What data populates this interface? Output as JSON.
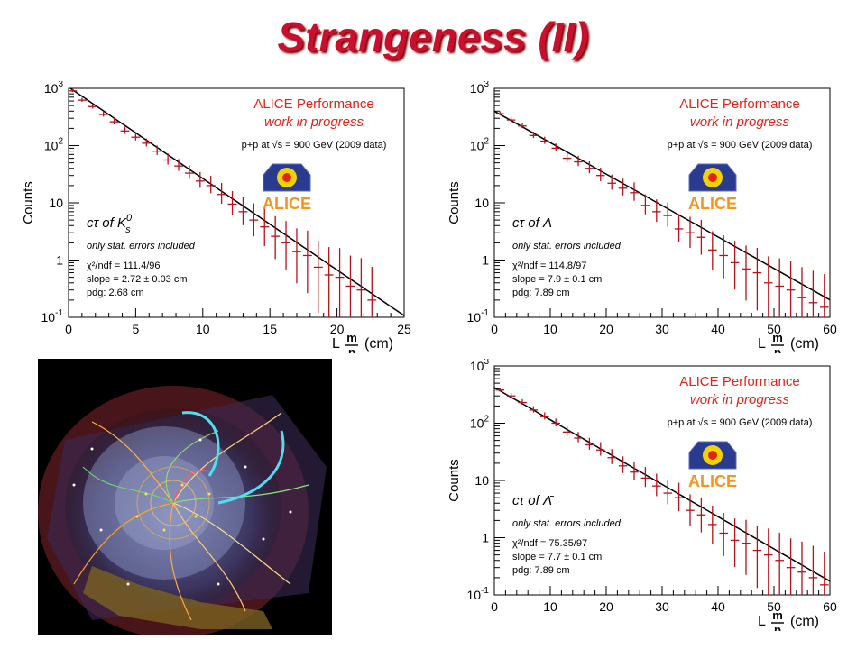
{
  "slide": {
    "title": "Strangeness (II)"
  },
  "colors": {
    "title": "#c8102e",
    "data": "#b5121b",
    "fit": "#000000",
    "alice": "#e2231a"
  },
  "chart_data": [
    {
      "type": "scatter",
      "panel": "top-left",
      "ylabel": "Counts",
      "xlabel": "L",
      "xlabel_frac_num": "m",
      "xlabel_frac_den": "p",
      "xlabel_unit": "(cm)",
      "xlim": [
        0,
        25
      ],
      "ylim": [
        0.1,
        1000
      ],
      "yscale": "log",
      "x_ticks": [
        "0",
        "5",
        "10",
        "15",
        "20",
        "25"
      ],
      "y_ticks": [
        {
          "base": "10",
          "exp": "-1",
          "v": 0.1
        },
        {
          "base": "1",
          "exp": "",
          "v": 1
        },
        {
          "base": "10",
          "exp": "",
          "v": 10
        },
        {
          "base": "10",
          "exp": "2",
          "v": 100
        },
        {
          "base": "10",
          "exp": "3",
          "v": 1000
        }
      ],
      "alice_title": "ALICE Performance",
      "alice_sub": "work in progress",
      "condition": "p+p at √s = 900 GeV (2009 data)",
      "logo_text": "ALICE",
      "particle_label": "cτ  of  K",
      "particle_sup": "0",
      "particle_sub": "s",
      "errors_note": "only stat. errors included",
      "chi2": "χ²/ndf = 111.4/96",
      "slope": "slope = 2.72 ± 0.03 cm",
      "pdg": "pdg: 2.68 cm",
      "fit": {
        "x0": 0,
        "y0": 1050,
        "tau": 2.72
      },
      "x": [
        0.3,
        1.0,
        1.8,
        2.6,
        3.4,
        4.2,
        5.0,
        5.8,
        6.6,
        7.4,
        8.2,
        9.0,
        9.8,
        10.6,
        11.4,
        12.2,
        13.0,
        13.8,
        14.6,
        15.4,
        16.2,
        17.0,
        17.8,
        18.6,
        19.4,
        20.2,
        21.0,
        21.8,
        22.6
      ],
      "y": [
        900,
        620,
        480,
        350,
        260,
        180,
        140,
        110,
        80,
        56,
        44,
        33,
        24,
        20,
        14,
        9.5,
        7,
        5,
        3.8,
        2.6,
        2,
        1.4,
        1.2,
        0.75,
        0.55,
        0.5,
        0.35,
        0.3,
        0.2
      ],
      "err": [
        0.04,
        0.05,
        0.06,
        0.07,
        0.08,
        0.09,
        0.1,
        0.1,
        0.12,
        0.14,
        0.15,
        0.17,
        0.2,
        0.22,
        0.26,
        0.3,
        0.35,
        0.4,
        0.45,
        0.5,
        0.55,
        0.6,
        0.65,
        0.7,
        0.75,
        0.8,
        0.85,
        0.9,
        0.95
      ]
    },
    {
      "type": "scatter",
      "panel": "top-right",
      "ylabel": "Counts",
      "xlabel": "L",
      "xlabel_frac_num": "m",
      "xlabel_frac_den": "p",
      "xlabel_unit": "(cm)",
      "xlim": [
        0,
        60
      ],
      "ylim": [
        0.1,
        1000
      ],
      "yscale": "log",
      "x_ticks": [
        "0",
        "10",
        "20",
        "30",
        "40",
        "50",
        "60"
      ],
      "y_ticks": [
        {
          "base": "10",
          "exp": "-1",
          "v": 0.1
        },
        {
          "base": "1",
          "exp": "",
          "v": 1
        },
        {
          "base": "10",
          "exp": "",
          "v": 10
        },
        {
          "base": "10",
          "exp": "2",
          "v": 100
        },
        {
          "base": "10",
          "exp": "3",
          "v": 1000
        }
      ],
      "alice_title": "ALICE Performance",
      "alice_sub": "work in progress",
      "condition": "p+p at √s = 900 GeV (2009 data)",
      "logo_text": "ALICE",
      "particle_label": "cτ  of  Λ",
      "particle_sup": "",
      "particle_sub": "",
      "errors_note": "only stat. errors included",
      "chi2": "χ²/ndf = 114.8/97",
      "slope": "slope = 7.9 ± 0.1 cm",
      "pdg": "pdg: 7.89 cm",
      "fit": {
        "x0": 0,
        "y0": 400,
        "tau": 7.9
      },
      "x": [
        1,
        3,
        5,
        7,
        9,
        11,
        13,
        15,
        17,
        19,
        21,
        23,
        25,
        27,
        29,
        31,
        33,
        35,
        37,
        39,
        41,
        43,
        45,
        47,
        49,
        51,
        53,
        55,
        57,
        59
      ],
      "y": [
        360,
        280,
        220,
        150,
        120,
        90,
        60,
        52,
        40,
        30,
        22,
        18,
        15,
        9,
        7,
        6,
        3.5,
        3,
        2.5,
        1.5,
        1.2,
        0.9,
        0.7,
        0.6,
        0.4,
        0.35,
        0.3,
        0.22,
        0.18,
        0.15
      ],
      "err": [
        0.05,
        0.06,
        0.07,
        0.08,
        0.09,
        0.1,
        0.12,
        0.13,
        0.15,
        0.17,
        0.19,
        0.21,
        0.23,
        0.25,
        0.28,
        0.3,
        0.35,
        0.38,
        0.42,
        0.46,
        0.5,
        0.55,
        0.6,
        0.65,
        0.7,
        0.75,
        0.8,
        0.85,
        0.9,
        0.95
      ]
    },
    {
      "type": "scatter",
      "panel": "bottom-right",
      "ylabel": "Counts",
      "xlabel": "L",
      "xlabel_frac_num": "m",
      "xlabel_frac_den": "p",
      "xlabel_unit": "(cm)",
      "xlim": [
        0,
        60
      ],
      "ylim": [
        0.1,
        1000
      ],
      "yscale": "log",
      "x_ticks": [
        "0",
        "10",
        "20",
        "30",
        "40",
        "50",
        "60"
      ],
      "y_ticks": [
        {
          "base": "10",
          "exp": "-1",
          "v": 0.1
        },
        {
          "base": "1",
          "exp": "",
          "v": 1
        },
        {
          "base": "10",
          "exp": "",
          "v": 10
        },
        {
          "base": "10",
          "exp": "2",
          "v": 100
        },
        {
          "base": "10",
          "exp": "3",
          "v": 1000
        }
      ],
      "alice_title": "ALICE Performance",
      "alice_sub": "work in progress",
      "condition": "p+p at √s = 900 GeV (2009 data)",
      "logo_text": "ALICE",
      "particle_label": "cτ  of  Λ̄",
      "particle_sup": "",
      "particle_sub": "",
      "errors_note": "only stat. errors included",
      "chi2": "χ²/ndf = 75.35/97",
      "slope": "slope = 7.7 ± 0.1 cm",
      "pdg": "pdg: 7.89 cm",
      "fit": {
        "x0": 0,
        "y0": 420,
        "tau": 7.7
      },
      "x": [
        1,
        3,
        5,
        7,
        9,
        11,
        13,
        15,
        17,
        19,
        21,
        23,
        25,
        27,
        29,
        31,
        33,
        35,
        37,
        39,
        41,
        43,
        45,
        47,
        49,
        51,
        53,
        55,
        57,
        59
      ],
      "y": [
        380,
        300,
        230,
        170,
        130,
        100,
        70,
        55,
        42,
        34,
        25,
        18,
        14,
        11,
        8,
        6,
        5,
        3,
        2.5,
        1.7,
        1.2,
        0.9,
        0.8,
        0.6,
        0.5,
        0.4,
        0.3,
        0.25,
        0.2,
        0.15
      ],
      "err": [
        0.05,
        0.06,
        0.07,
        0.08,
        0.09,
        0.1,
        0.12,
        0.13,
        0.15,
        0.17,
        0.19,
        0.21,
        0.23,
        0.25,
        0.28,
        0.3,
        0.35,
        0.38,
        0.42,
        0.46,
        0.5,
        0.55,
        0.6,
        0.65,
        0.7,
        0.75,
        0.8,
        0.85,
        0.9,
        0.95
      ]
    }
  ]
}
